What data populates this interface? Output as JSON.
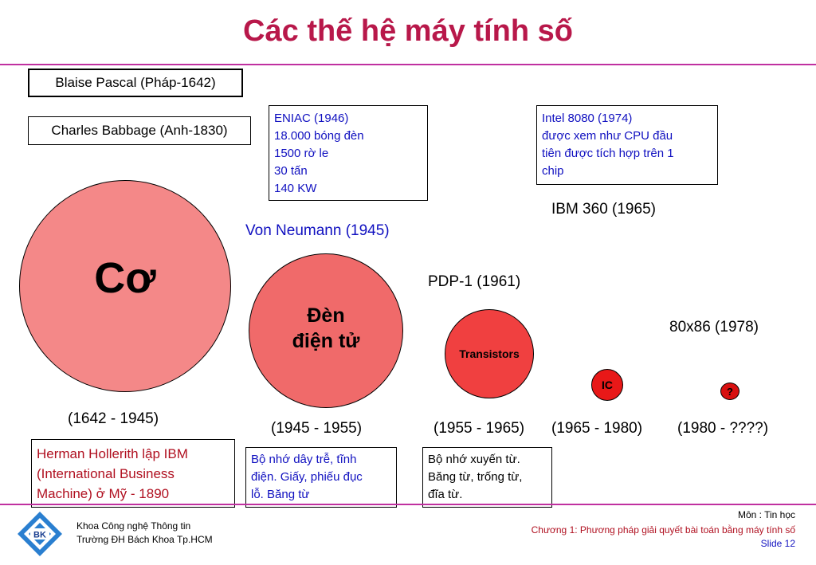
{
  "slide": {
    "title": "Các thế hệ máy tính số"
  },
  "people": {
    "pascal": "Blaise Pascal (Pháp-1642)",
    "babbage": "Charles Babbage (Anh-1830)",
    "hollerith": "Herman Hollerith lập IBM\n(International Business\nMachine) ở Mỹ - 1890"
  },
  "boxes": {
    "eniac": "ENIAC (1946)\n18.000 bóng đèn\n1500 rờ le\n30 tấn\n140 KW",
    "intel": "Intel 8080 (1974)\nđược xem như CPU đầu\ntiên được tích hợp trên 1\nchip",
    "memory_1": "Bộ nhớ dây trễ, tĩnh\nđiện. Giấy, phiếu đục\nlỗ. Băng từ",
    "memory_2": "Bộ nhớ xuyến từ.\nBăng từ, trống từ,\nđĩa từ."
  },
  "labels": {
    "ibm360": "IBM 360 (1965)",
    "von_neumann": "Von Neumann (1945)",
    "pdp1": "PDP-1 (1961)",
    "x86": "80x86 (1978)"
  },
  "generations": [
    {
      "name": "Cơ",
      "period": "(1642 - 1945)"
    },
    {
      "name": "Đèn\nđiện tử",
      "period": "(1945 - 1955)"
    },
    {
      "name": "Transistors",
      "period": "(1955 - 1965)"
    },
    {
      "name": "IC",
      "period": "(1965 - 1980)"
    },
    {
      "name": "?",
      "period": "(1980 - ????)"
    }
  ],
  "footer": {
    "logo": "BK",
    "faculty": "Khoa Công nghệ Thông tin",
    "university": "Trường ĐH Bách Khoa Tp.HCM",
    "subject": "Môn : Tin học",
    "chapter": "Chương 1: Phương pháp giải quyết bài toán bằng máy tính số",
    "slide_no": "Slide 12"
  },
  "colors": {
    "title": "#b8184a",
    "rule": "#c030a0",
    "circle_mech": "#f48888",
    "circle_tube": "#f06a6a",
    "circle_transistor": "#f04040",
    "circle_ic": "#e81818",
    "circle_unknown": "#d81010",
    "accent_blue": "#1010c0"
  }
}
